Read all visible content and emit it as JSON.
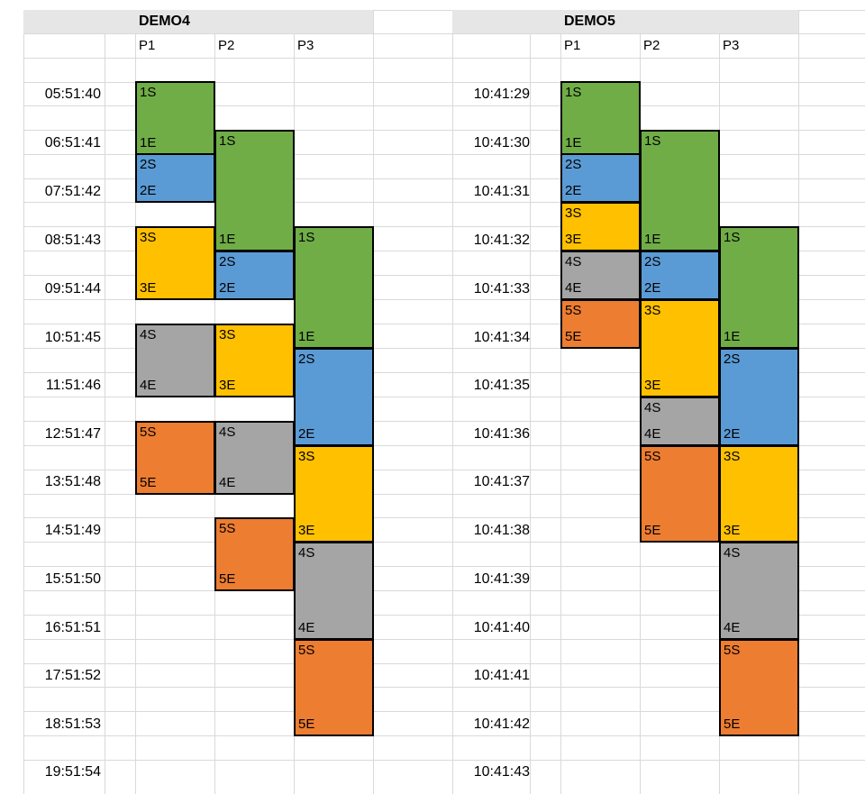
{
  "colors": {
    "green": "#70ad47",
    "blue": "#5b9bd5",
    "yellow": "#ffc000",
    "gray": "#a5a5a5",
    "orange": "#ed7d31",
    "header_fill": "#e7e6e6",
    "gridline": "#d9d9d9"
  },
  "demo4": {
    "title": "DEMO4",
    "columns": [
      "P1",
      "P2",
      "P3"
    ],
    "times": [
      "05:51:40",
      "06:51:41",
      "07:51:42",
      "08:51:43",
      "09:51:44",
      "10:51:45",
      "11:51:46",
      "12:51:47",
      "13:51:48",
      "14:51:49",
      "15:51:50",
      "16:51:51",
      "17:51:52",
      "18:51:53",
      "19:51:54"
    ]
  },
  "demo5": {
    "title": "DEMO5",
    "columns": [
      "P1",
      "P2",
      "P3"
    ],
    "times": [
      "10:41:29",
      "10:41:30",
      "10:41:31",
      "10:41:32",
      "10:41:33",
      "10:41:34",
      "10:41:35",
      "10:41:36",
      "10:41:37",
      "10:41:38",
      "10:41:39",
      "10:41:40",
      "10:41:41",
      "10:41:42",
      "10:41:43"
    ]
  },
  "labels": {
    "s1": "1S",
    "e1": "1E",
    "s2": "2S",
    "e2": "2E",
    "s3": "3S",
    "e3": "3E",
    "s4": "4S",
    "e4": "4E",
    "s5": "5S",
    "e5": "5E"
  }
}
